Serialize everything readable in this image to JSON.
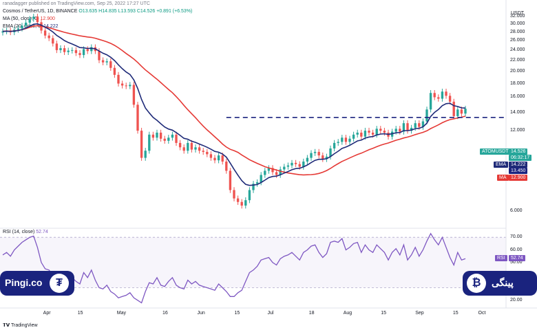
{
  "header": {
    "publisher": "ranadagger published on TradingView.com, Sep 25, 2022 17:27 UTC"
  },
  "legend": {
    "symbol": "Cosmos / TetherUS, 1D, BINANCE",
    "ohlc": "O13.635  H14.835  L13.593  C14.526  +0.891 (+6.53%)",
    "ma": "MA (50, close, 0)",
    "ma_value": "12.900",
    "ema": "EMA (20, close, 0)",
    "ema_value": "14.222",
    "rsi": "RSI (14, close)",
    "rsi_value": "52.74"
  },
  "currency": "USDT",
  "tags": {
    "symbol": "ATOMUSDT",
    "price": "14.526",
    "countdown": "06:32:17",
    "ema": "EMA",
    "ema_val": "14.222",
    "level": "13.450",
    "ma": "MA",
    "ma_val": "12.900",
    "rsi": "RSI",
    "rsi_val": "52.74"
  },
  "watermark": {
    "left": "Pingi.co",
    "right": "پینگی",
    "footer": "TradingView"
  },
  "colors": {
    "up": "#26a69a",
    "down": "#ef5350",
    "ema": "#1e2a78",
    "ma": "#e53935",
    "rsi": "#7e57c2",
    "level": "#1a237e",
    "brand": "#1a237e"
  },
  "chart_data": {
    "type": "candlestick",
    "price_axis": {
      "ticks": [
        "32.000",
        "30.000",
        "28.000",
        "26.000",
        "24.000",
        "22.000",
        "20.000",
        "18.000",
        "16.000",
        "14.000",
        "12.000",
        "10.000",
        "8.000",
        "6.000"
      ],
      "log": true,
      "ylim": [
        5.5,
        34
      ]
    },
    "rsi_axis": {
      "ticks": [
        "70.00",
        "60.00",
        "50.00",
        "40.00",
        "30.00",
        "20.00"
      ],
      "ylim": [
        15,
        75
      ],
      "bands": [
        30,
        70
      ]
    },
    "x_labels": [
      "Apr",
      "15",
      "May",
      "16",
      "Jun",
      "15",
      "Jul",
      "18",
      "Aug",
      "15",
      "Sep",
      "15",
      "Oct"
    ],
    "horizontal_level": 13.45,
    "close": [
      28.2,
      28.4,
      28.0,
      28.6,
      28.9,
      29.6,
      30.4,
      31.4,
      32.0,
      30.5,
      28.4,
      27.2,
      26.6,
      25.4,
      24.0,
      24.4,
      23.6,
      23.9,
      24.0,
      23.4,
      23.0,
      24.2,
      23.8,
      24.6,
      23.8,
      22.0,
      21.6,
      21.8,
      20.6,
      19.4,
      18.0,
      17.7,
      17.6,
      17.8,
      15.0,
      12.0,
      9.5,
      10.1,
      11.6,
      11.3,
      11.8,
      11.2,
      11.0,
      11.3,
      11.6,
      10.8,
      10.4,
      10.1,
      10.8,
      10.2,
      10.4,
      10.1,
      10.0,
      9.8,
      9.5,
      9.3,
      9.7,
      9.2,
      8.5,
      7.2,
      6.7,
      6.5,
      6.3,
      6.6,
      7.2,
      7.6,
      7.7,
      8.2,
      8.5,
      8.7,
      8.4,
      8.2,
      8.6,
      8.8,
      8.9,
      9.1,
      9.0,
      8.8,
      9.2,
      9.5,
      9.9,
      10.0,
      9.7,
      9.4,
      9.6,
      10.3,
      10.8,
      10.9,
      11.3,
      10.9,
      11.2,
      11.6,
      11.8,
      11.4,
      12.0,
      11.8,
      11.6,
      12.2,
      12.0,
      11.8,
      11.4,
      11.9,
      12.2,
      11.9,
      12.8,
      12.0,
      12.3,
      12.8,
      12.4,
      13.0,
      14.4,
      16.6,
      16.0,
      15.8,
      16.8,
      16.2,
      15.4,
      13.6,
      14.4,
      13.9,
      14.5
    ],
    "series": [
      {
        "name": "EMA (20, close, 0)",
        "value": "14.222"
      },
      {
        "name": "MA (50, close, 0)",
        "value": "12.900"
      },
      {
        "name": "RSI (14, close)",
        "value": "52.74",
        "values": [
          56,
          58,
          55,
          60,
          63,
          66,
          68,
          70,
          71,
          62,
          50,
          45,
          44,
          40,
          37,
          40,
          36,
          37,
          38,
          35,
          33,
          42,
          38,
          44,
          36,
          30,
          29,
          32,
          27,
          25,
          22,
          23,
          24,
          26,
          22,
          20,
          18,
          27,
          34,
          33,
          38,
          32,
          31,
          35,
          38,
          32,
          30,
          29,
          36,
          33,
          35,
          32,
          31,
          30,
          29,
          28,
          33,
          30,
          27,
          23,
          23,
          26,
          28,
          35,
          42,
          44,
          47,
          52,
          53,
          54,
          50,
          48,
          53,
          55,
          56,
          58,
          55,
          52,
          58,
          60,
          63,
          64,
          58,
          54,
          57,
          66,
          67,
          66,
          69,
          60,
          62,
          65,
          66,
          58,
          64,
          60,
          58,
          64,
          61,
          58,
          52,
          58,
          61,
          56,
          64,
          52,
          56,
          62,
          55,
          60,
          67,
          73,
          68,
          64,
          70,
          62,
          54,
          48,
          58,
          52,
          53
        ]
      }
    ]
  }
}
